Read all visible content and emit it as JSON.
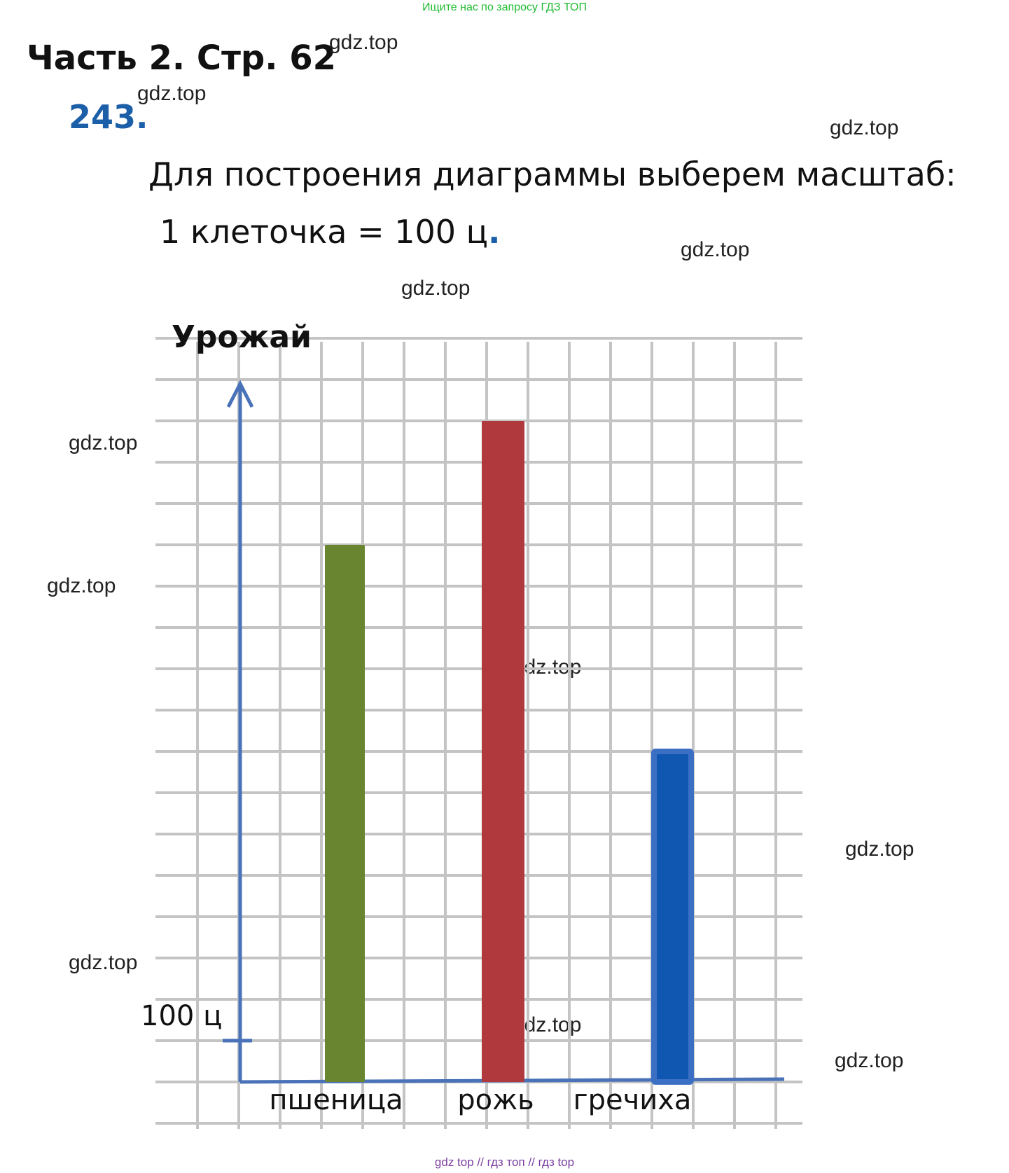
{
  "top_banner": "Ищите нас по запросу ГДЗ ТОП",
  "header": {
    "part_title": "Часть 2. Стр. 62",
    "task_number": "243."
  },
  "scale_text": {
    "line1": "Для построения диаграммы выберем масштаб:",
    "line2": "1 клеточка = 100 ц",
    "line2_end": "."
  },
  "watermark": "gdz.top",
  "footer": "gdz top  //  гдз топ  //  гдз top",
  "chart_data": {
    "type": "bar",
    "ylabel": "Урожай",
    "tick_label": "100 ц",
    "tick_value": 100,
    "unit_per_cell": 100,
    "categories": [
      "пшеница",
      "рожь",
      "гречиха"
    ],
    "values": [
      1300,
      1600,
      800
    ],
    "colors": [
      "#6a8530",
      "#b0393e",
      "#0f57b0"
    ],
    "grid": true,
    "axis_color": "#4a72b8"
  }
}
